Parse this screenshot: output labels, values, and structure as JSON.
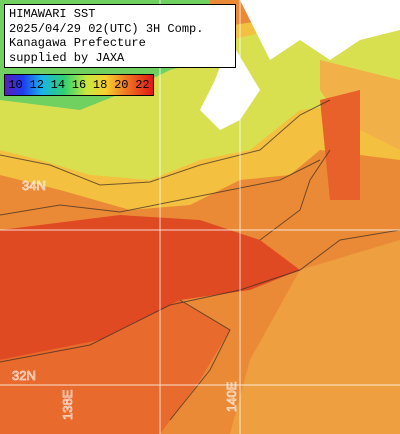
{
  "header": {
    "lines": [
      "HIMAWARI SST",
      "2025/04/29 02(UTC) 3H Comp.",
      "Kanagawa Prefecture",
      "supplied by JAXA"
    ]
  },
  "legend": {
    "labels": [
      "10",
      "12",
      "14",
      "16",
      "18",
      "20",
      "22"
    ]
  },
  "grid_labels": {
    "lat": [
      "34N",
      "32N"
    ],
    "lon": [
      "138E",
      "140E"
    ]
  }
}
